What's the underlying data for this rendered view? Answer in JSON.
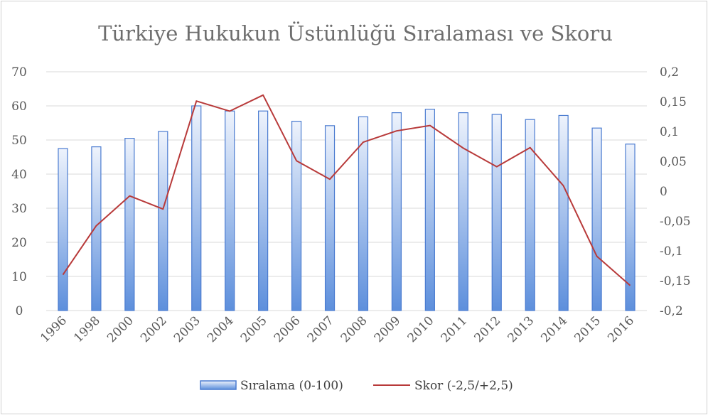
{
  "chart_data": {
    "type": "bar",
    "title": "Türkiye Hukukun Üstünlüğü Sıralaması ve Skoru",
    "categories": [
      "1996",
      "1998",
      "2000",
      "2002",
      "2003",
      "2004",
      "2005",
      "2006",
      "2007",
      "2008",
      "2009",
      "2010",
      "2011",
      "2012",
      "2013",
      "2014",
      "2015",
      "2016"
    ],
    "series": [
      {
        "name": "Sıralama (0-100)",
        "type": "bar",
        "axis": "left",
        "color": "#4a7bd0",
        "values": [
          47.5,
          48,
          50.5,
          52.5,
          60,
          58.5,
          58.5,
          55.5,
          54.2,
          56.8,
          58,
          59,
          58,
          57.5,
          56,
          57.2,
          53.5,
          48.8
        ]
      },
      {
        "name": "Skor (-2,5/+2,5)",
        "type": "line",
        "axis": "right",
        "color": "#b83a3a",
        "values": [
          -0.14,
          -0.058,
          -0.008,
          -0.03,
          0.151,
          0.134,
          0.161,
          0.051,
          0.02,
          0.082,
          0.101,
          0.11,
          0.072,
          0.041,
          0.073,
          0.009,
          -0.109,
          -0.158
        ]
      }
    ],
    "y_left": {
      "ylim": [
        0,
        70
      ],
      "ticks": [
        "0",
        "10",
        "20",
        "30",
        "40",
        "50",
        "60",
        "70"
      ],
      "tick_values": [
        0,
        10,
        20,
        30,
        40,
        50,
        60,
        70
      ]
    },
    "y_right": {
      "ylim": [
        -0.2,
        0.2
      ],
      "ticks": [
        "-0,2",
        "-0,15",
        "-0,1",
        "-0,05",
        "0",
        "0,05",
        "0,1",
        "0,15",
        "0,2"
      ],
      "tick_values": [
        -0.2,
        -0.15,
        -0.1,
        -0.05,
        0,
        0.05,
        0.1,
        0.15,
        0.2
      ]
    },
    "grid": true,
    "legend_position": "bottom"
  }
}
